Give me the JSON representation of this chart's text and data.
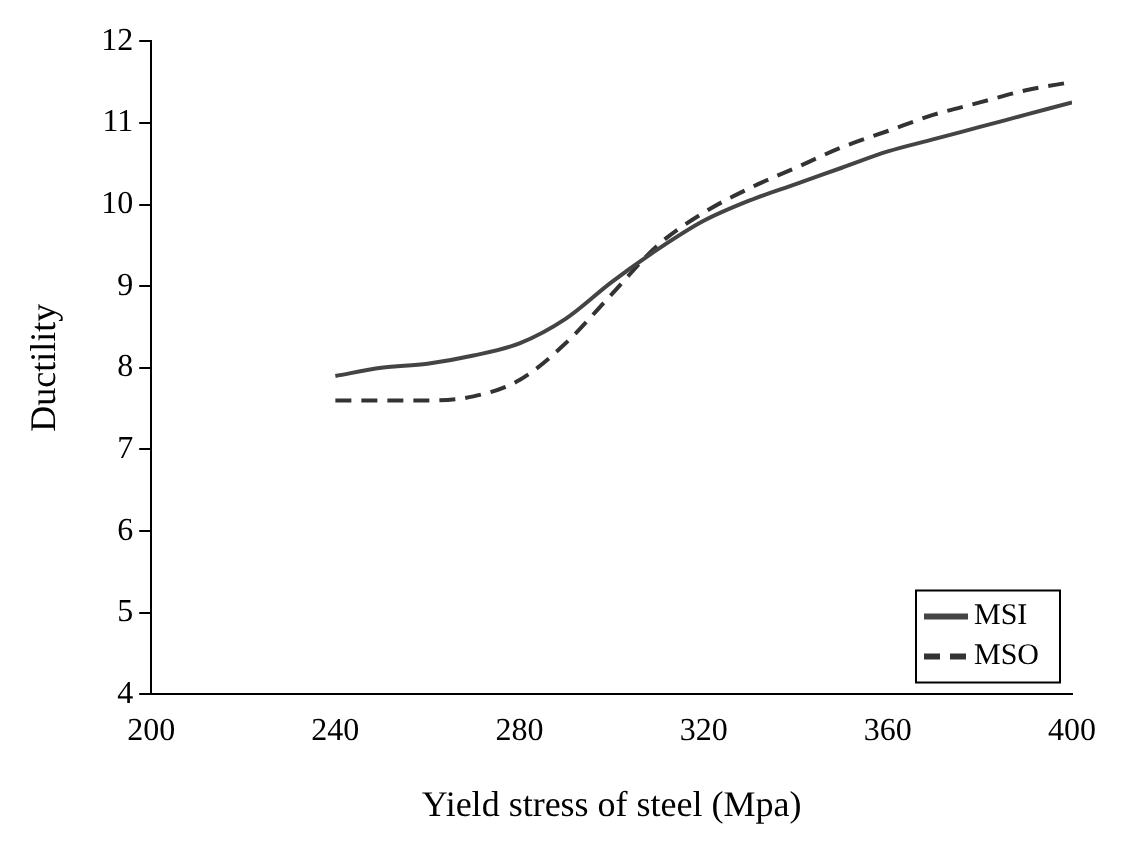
{
  "chart_data": {
    "type": "line",
    "xlabel": "Yield stress of steel (Mpa)",
    "ylabel": "Ductility",
    "xlim": [
      200,
      400
    ],
    "xticks": [
      200,
      240,
      280,
      320,
      360,
      400
    ],
    "ylim": [
      4,
      12
    ],
    "yticks": [
      4,
      5,
      6,
      7,
      8,
      9,
      10,
      11,
      12
    ],
    "grid": false,
    "legend": "bottom right",
    "marker": "none",
    "series": [
      {
        "name": "MSI",
        "color": "#444444",
        "line_style": "solid",
        "x": [
          240,
          250,
          260,
          270,
          280,
          290,
          300,
          310,
          320,
          330,
          340,
          350,
          360,
          370,
          380,
          390,
          400
        ],
        "values": [
          7.9,
          8.0,
          8.05,
          8.15,
          8.3,
          8.6,
          9.05,
          9.45,
          9.8,
          10.05,
          10.25,
          10.45,
          10.65,
          10.8,
          10.95,
          11.1,
          11.25
        ]
      },
      {
        "name": "MSO",
        "color": "#333333",
        "line_style": "dashed",
        "x": [
          240,
          250,
          260,
          270,
          280,
          290,
          300,
          310,
          320,
          330,
          340,
          350,
          360,
          370,
          380,
          390,
          400
        ],
        "values": [
          7.6,
          7.6,
          7.6,
          7.65,
          7.85,
          8.3,
          8.9,
          9.5,
          9.9,
          10.2,
          10.45,
          10.7,
          10.9,
          11.1,
          11.25,
          11.4,
          11.5
        ]
      }
    ]
  }
}
